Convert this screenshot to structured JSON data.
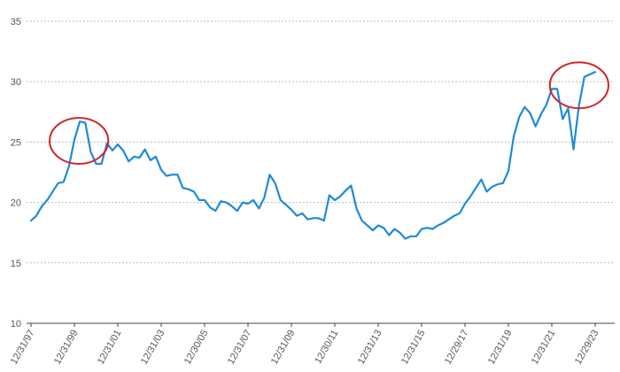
{
  "chart_data": {
    "type": "line",
    "title": "",
    "xlabel": "",
    "ylabel": "",
    "ylim": [
      10,
      35
    ],
    "y_ticks": [
      10,
      15,
      20,
      25,
      30,
      35
    ],
    "grid": true,
    "x_tick_labels": [
      "12/31/97",
      "12/31/99",
      "12/31/01",
      "12/31/03",
      "12/30/05",
      "12/31/07",
      "12/31/09",
      "12/30/11",
      "12/31/13",
      "12/31/15",
      "12/29/17",
      "12/31/19",
      "12/31/21",
      "12/29/23"
    ],
    "series": [
      {
        "color": "#1f8ad8",
        "x": [
          1997.99,
          1998.24,
          1998.49,
          1998.74,
          1998.99,
          1999.24,
          1999.49,
          1999.74,
          1999.99,
          2000.24,
          2000.49,
          2000.74,
          2000.99,
          2001.24,
          2001.49,
          2001.74,
          2001.99,
          2002.24,
          2002.49,
          2002.74,
          2002.99,
          2003.24,
          2003.49,
          2003.74,
          2003.99,
          2004.24,
          2004.49,
          2004.74,
          2004.99,
          2005.24,
          2005.49,
          2005.74,
          2005.99,
          2006.24,
          2006.49,
          2006.74,
          2006.99,
          2007.24,
          2007.49,
          2007.74,
          2007.99,
          2008.24,
          2008.49,
          2008.74,
          2008.99,
          2009.24,
          2009.49,
          2009.74,
          2009.99,
          2010.24,
          2010.49,
          2010.74,
          2010.99,
          2011.24,
          2011.49,
          2011.74,
          2011.99,
          2012.24,
          2012.49,
          2012.74,
          2012.99,
          2013.24,
          2013.49,
          2013.74,
          2013.99,
          2014.24,
          2014.49,
          2014.74,
          2014.99,
          2015.24,
          2015.49,
          2015.74,
          2015.99,
          2016.24,
          2016.49,
          2016.74,
          2016.99,
          2017.24,
          2017.49,
          2017.74,
          2017.99,
          2018.24,
          2018.49,
          2018.74,
          2018.99,
          2019.24,
          2019.49,
          2019.74,
          2019.99,
          2020.24,
          2020.49,
          2020.74,
          2020.99,
          2021.24,
          2021.49,
          2021.74,
          2021.99,
          2022.24,
          2022.49,
          2022.74,
          2022.99,
          2023.24,
          2023.49,
          2023.74,
          2023.99
        ],
        "y": [
          18.5,
          18.9,
          19.7,
          20.2,
          20.9,
          21.6,
          21.7,
          23.0,
          25.2,
          26.7,
          26.6,
          24.2,
          23.2,
          23.2,
          24.9,
          24.3,
          24.8,
          24.3,
          23.4,
          23.8,
          23.7,
          24.4,
          23.5,
          23.8,
          22.7,
          22.2,
          22.3,
          22.3,
          21.2,
          21.1,
          20.9,
          20.2,
          20.2,
          19.6,
          19.3,
          20.1,
          20.0,
          19.7,
          19.3,
          20.0,
          19.9,
          20.2,
          19.5,
          20.4,
          22.3,
          21.6,
          20.2,
          19.8,
          19.4,
          18.9,
          19.1,
          18.6,
          18.7,
          18.7,
          18.5,
          20.6,
          20.2,
          20.5,
          21.0,
          21.4,
          19.5,
          18.5,
          18.1,
          17.7,
          18.1,
          17.9,
          17.3,
          17.8,
          17.5,
          17.0,
          17.2,
          17.2,
          17.8,
          17.9,
          17.8,
          18.1,
          18.3,
          18.6,
          18.9,
          19.1,
          19.9,
          20.5,
          21.2,
          21.9,
          20.9,
          21.3,
          21.5,
          21.6,
          22.6,
          25.5,
          27.1,
          27.9,
          27.4,
          26.3,
          27.3,
          28.1,
          29.4,
          29.4,
          26.9,
          27.8,
          24.4,
          28.0,
          30.4,
          30.6,
          30.8
        ]
      }
    ],
    "annotations": [
      {
        "type": "circle",
        "color": "#d0252b",
        "cx": 2000.2,
        "cy": 25.1,
        "rx_years": 1.35,
        "ry_units": 1.9
      },
      {
        "type": "circle",
        "color": "#d0252b",
        "cx": 2023.25,
        "cy": 29.7,
        "rx_years": 1.35,
        "ry_units": 1.9
      }
    ]
  }
}
